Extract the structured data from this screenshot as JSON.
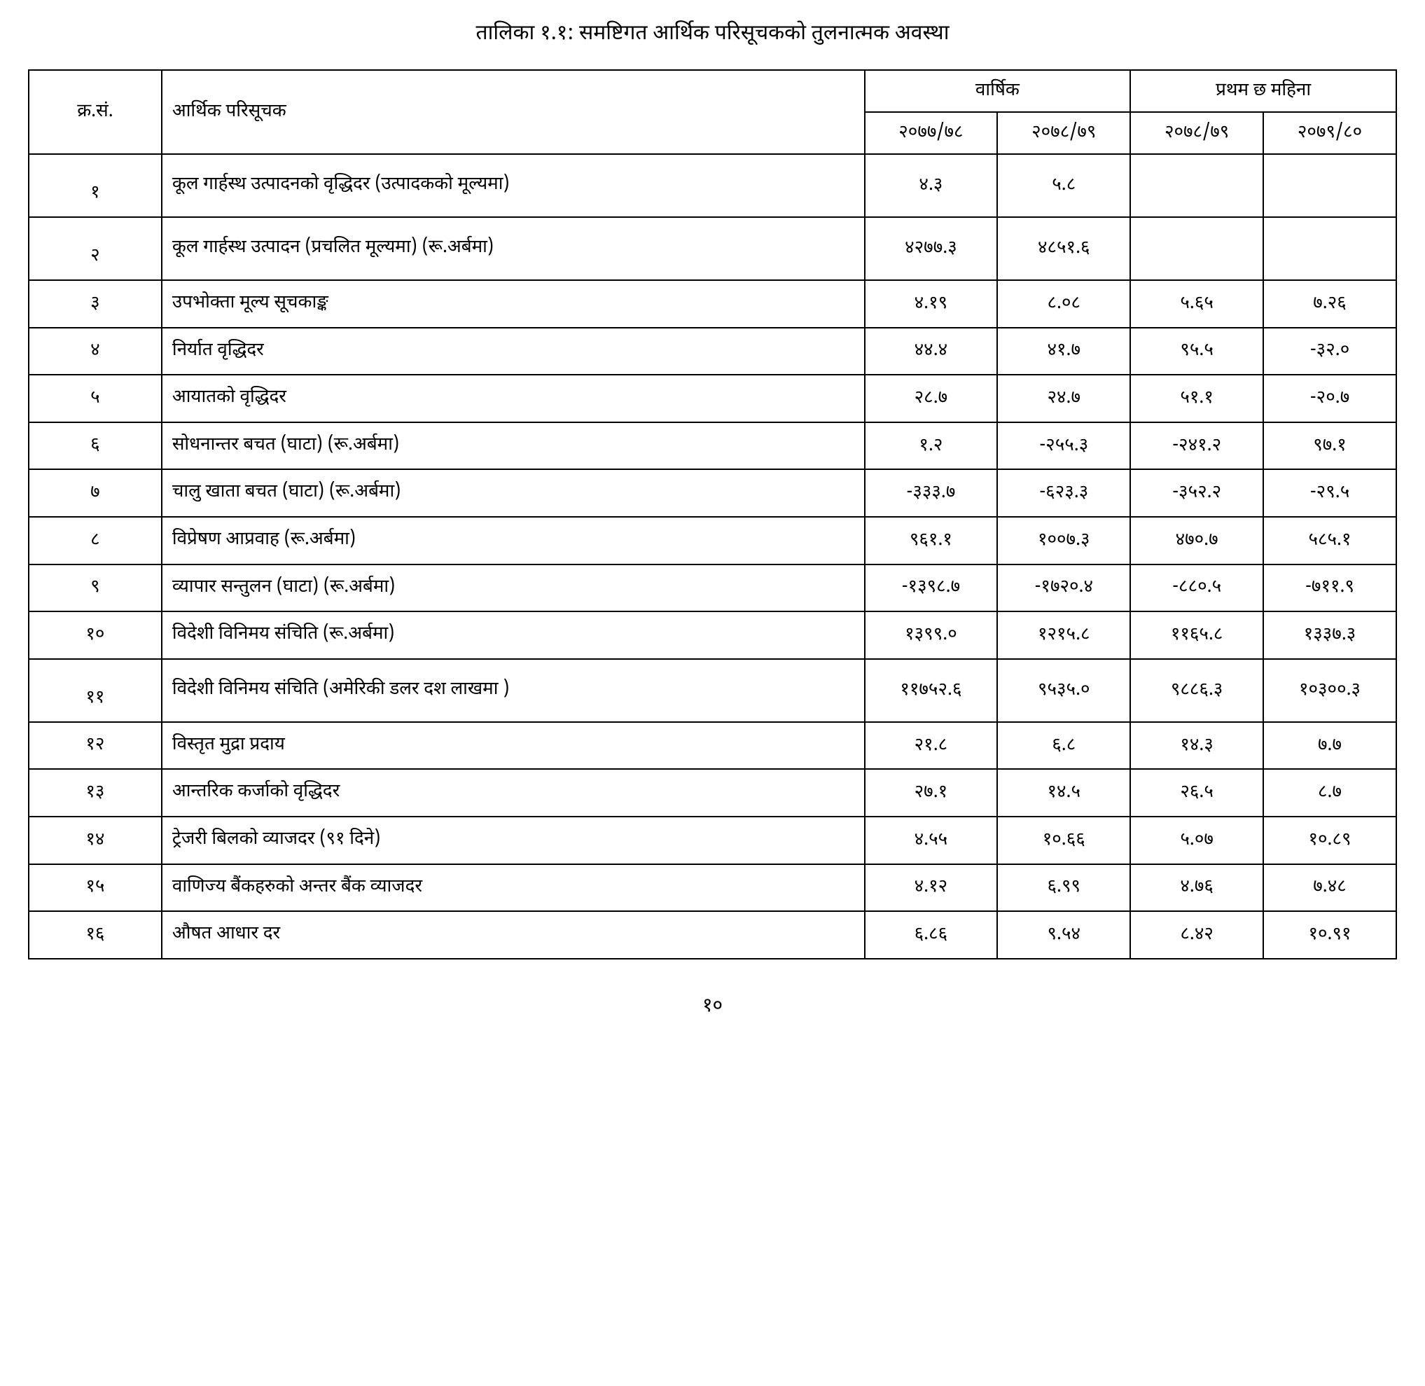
{
  "title": "तालिका १.१: समष्टिगत आर्थिक परिसूचकको तुलनात्मक अवस्था",
  "pageNumber": "१०",
  "table": {
    "headers": {
      "sn": "क्र.सं.",
      "indicator": "आर्थिक परिसूचक",
      "annual": "वार्षिक",
      "halfyear": "प्रथम छ महिना",
      "y1": "२०७७/७८",
      "y2": "२०७८/७९",
      "y3": "२०७८/७९",
      "y4": "२०७९/८०"
    },
    "rows": [
      {
        "sn": "१",
        "indicator": "कूल गार्हस्थ उत्पादनको वृद्धिदर (उत्पादकको मूल्यमा)",
        "c1": "४.३",
        "c2": "५.८",
        "c3": "",
        "c4": "",
        "tall": true
      },
      {
        "sn": "२",
        "indicator": "कूल गार्हस्थ उत्पादन (प्रचलित मूल्यमा) (रू.अर्बमा)",
        "c1": "४२७७.३",
        "c2": "४८५१.६",
        "c3": "",
        "c4": "",
        "tall": true
      },
      {
        "sn": "३",
        "indicator": "उपभोक्ता मूल्य सूचकाङ्क",
        "c1": "४.१९",
        "c2": "८.०८",
        "c3": "५.६५",
        "c4": "७.२६"
      },
      {
        "sn": "४",
        "indicator": "निर्यात वृद्धिदर",
        "c1": "४४.४",
        "c2": "४१.७",
        "c3": "९५.५",
        "c4": "-३२.०"
      },
      {
        "sn": "५",
        "indicator": "आयातको वृद्धिदर",
        "c1": "२८.७",
        "c2": "२४.७",
        "c3": "५१.१",
        "c4": "-२०.७"
      },
      {
        "sn": "६",
        "indicator": "सोधनान्तर बचत (घाटा) (रू.अर्बमा)",
        "c1": "१.२",
        "c2": "-२५५.३",
        "c3": "-२४१.२",
        "c4": "९७.१"
      },
      {
        "sn": "७",
        "indicator": "चालु खाता बचत (घाटा) (रू.अर्बमा)",
        "c1": "-३३३.७",
        "c2": "-६२३.३",
        "c3": "-३५२.२",
        "c4": "-२९.५"
      },
      {
        "sn": "८",
        "indicator": "विप्रेषण आप्रवाह (रू.अर्बमा)",
        "c1": "९६१.१",
        "c2": "१००७.३",
        "c3": "४७०.७",
        "c4": "५८५.१"
      },
      {
        "sn": "९",
        "indicator": "व्यापार सन्तुलन (घाटा) (रू.अर्बमा)",
        "c1": "-१३९८.७",
        "c2": "-१७२०.४",
        "c3": "-८८०.५",
        "c4": "-७११.९"
      },
      {
        "sn": "१०",
        "indicator": "विदेशी विनिमय संचिति (रू.अर्बमा)",
        "c1": "१३९९.०",
        "c2": "१२१५.८",
        "c3": "११६५.८",
        "c4": "१३३७.३"
      },
      {
        "sn": "११",
        "indicator": "विदेशी विनिमय संचिति (अमेरिकी डलर दश लाखमा )",
        "c1": "११७५२.६",
        "c2": "९५३५.०",
        "c3": "९८८६.३",
        "c4": "१०३००.३",
        "tall": true
      },
      {
        "sn": "१२",
        "indicator": "विस्तृत मुद्रा प्रदाय",
        "c1": "२१.८",
        "c2": "६.८",
        "c3": "१४.३",
        "c4": "७.७"
      },
      {
        "sn": "१३",
        "indicator": "आन्तरिक कर्जाको वृद्धिदर",
        "c1": "२७.१",
        "c2": "१४.५",
        "c3": "२६.५",
        "c4": "८.७"
      },
      {
        "sn": "१४",
        "indicator": "ट्रेजरी बिलको व्याजदर (९१ दिने)",
        "c1": "४.५५",
        "c2": "१०.६६",
        "c3": "५.०७",
        "c4": "१०.८९"
      },
      {
        "sn": "१५",
        "indicator": "वाणिज्य बैंकहरुको अन्तर बैंक व्याजदर",
        "c1": "४.१२",
        "c2": "६.९९",
        "c3": "४.७६",
        "c4": "७.४८"
      },
      {
        "sn": "१६",
        "indicator": "औषत आधार दर",
        "c1": "६.८६",
        "c2": "९.५४",
        "c3": "८.४२",
        "c4": "१०.९१"
      }
    ]
  }
}
